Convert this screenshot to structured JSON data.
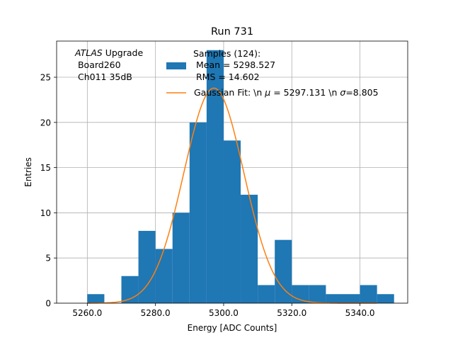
{
  "chart_data": {
    "type": "bar",
    "title": "Run 731",
    "xlabel": "Energy [ADC Counts]",
    "ylabel": "Entries",
    "xlim": [
      5251,
      5354
    ],
    "ylim": [
      0,
      29
    ],
    "xticks": [
      5260,
      5280,
      5300,
      5320,
      5340
    ],
    "xtick_labels": [
      "5260.0",
      "5280.0",
      "5300.0",
      "5320.0",
      "5340.0"
    ],
    "yticks": [
      0,
      5,
      10,
      15,
      20,
      25
    ],
    "ytick_labels": [
      "0",
      "5",
      "10",
      "15",
      "20",
      "25"
    ],
    "grid": true,
    "bin_edges": [
      5260,
      5265,
      5270,
      5275,
      5280,
      5285,
      5290,
      5295,
      5300,
      5305,
      5310,
      5315,
      5320,
      5325,
      5330,
      5335,
      5340,
      5345,
      5350
    ],
    "counts": [
      1,
      0,
      3,
      8,
      6,
      10,
      20,
      28,
      18,
      12,
      2,
      7,
      2,
      2,
      1,
      1,
      2,
      1
    ],
    "bar_color": "#1f77b4",
    "fit": {
      "mu": 5297.131,
      "sigma": 8.805,
      "amplitude": 23.8,
      "color": "#ff7f0e",
      "x_range": [
        5260,
        5345
      ]
    },
    "annotation": {
      "lines": [
        "ATLAS Upgrade",
        " Board260",
        " Ch011 35dB"
      ]
    },
    "legend": {
      "position": "top-right",
      "histogram_label": [
        "Samples (124):",
        " Mean = 5298.527",
        " RMS = 14.602"
      ],
      "fit_label": "Gaussian Fit: \\n $\\mu$ = 5297.131 \\n $\\sigma$=8.805"
    }
  }
}
